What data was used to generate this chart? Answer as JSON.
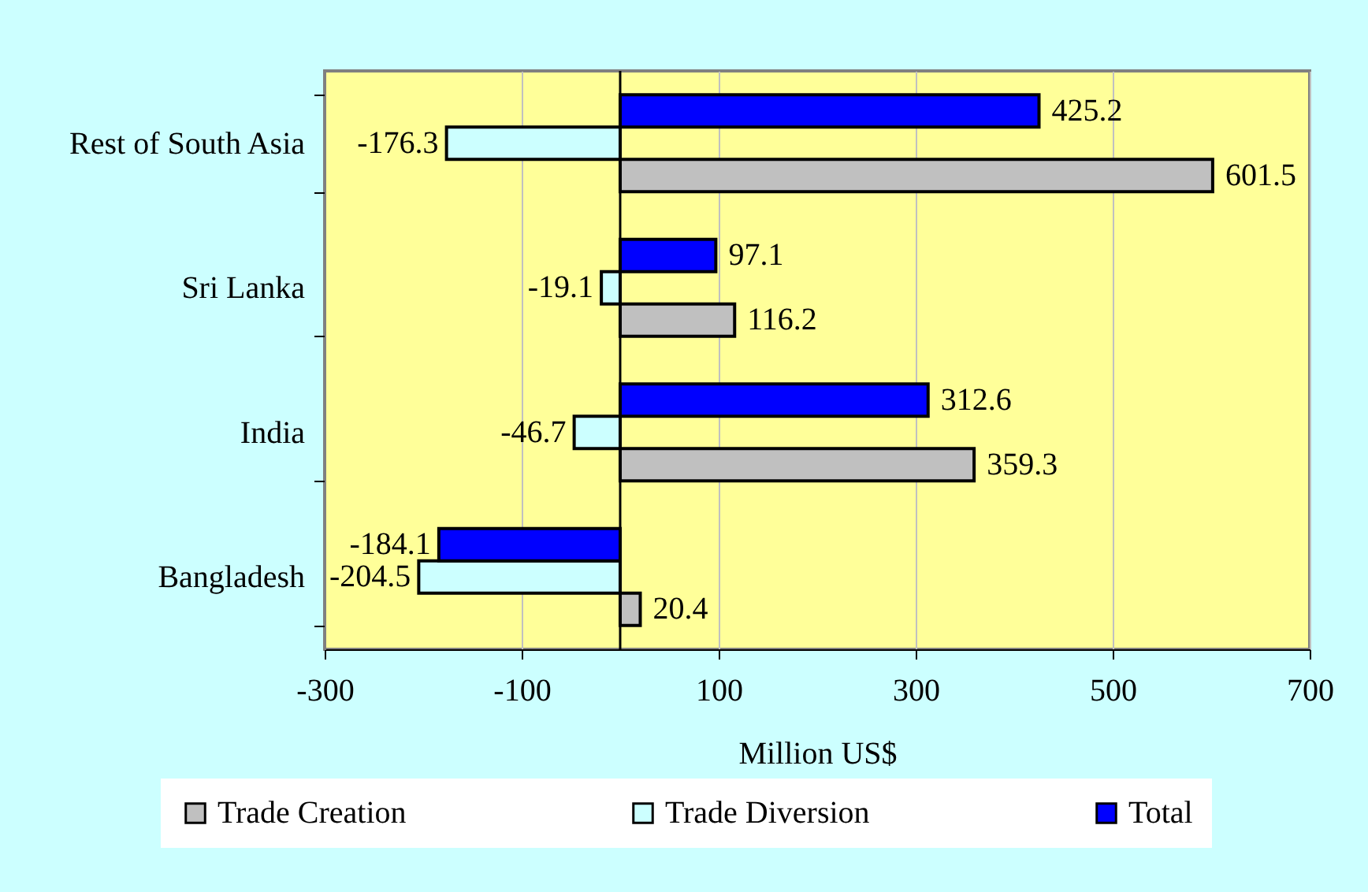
{
  "chart_data": {
    "type": "bar",
    "orientation": "horizontal",
    "categories": [
      "Rest of South Asia",
      "Sri Lanka",
      "India",
      "Bangladesh"
    ],
    "series": [
      {
        "name": "Trade Creation",
        "color": "#c0c0c0",
        "values": [
          601.5,
          116.2,
          359.3,
          20.4
        ]
      },
      {
        "name": "Trade Diversion",
        "color": "#ccffff",
        "values": [
          -176.3,
          -19.1,
          -46.7,
          -204.5
        ]
      },
      {
        "name": "Total",
        "color": "#0000ff",
        "values": [
          425.2,
          97.1,
          312.6,
          -184.1
        ]
      }
    ],
    "xlabel": "Million US$",
    "xlim": [
      -300,
      700
    ],
    "xticks": [
      -300,
      -100,
      100,
      300,
      500,
      700
    ],
    "grid": "x",
    "legend": "bottom",
    "data_labels": true,
    "ref_lines": [
      {
        "axis": "x",
        "value": 0,
        "color": "#000000"
      }
    ]
  }
}
